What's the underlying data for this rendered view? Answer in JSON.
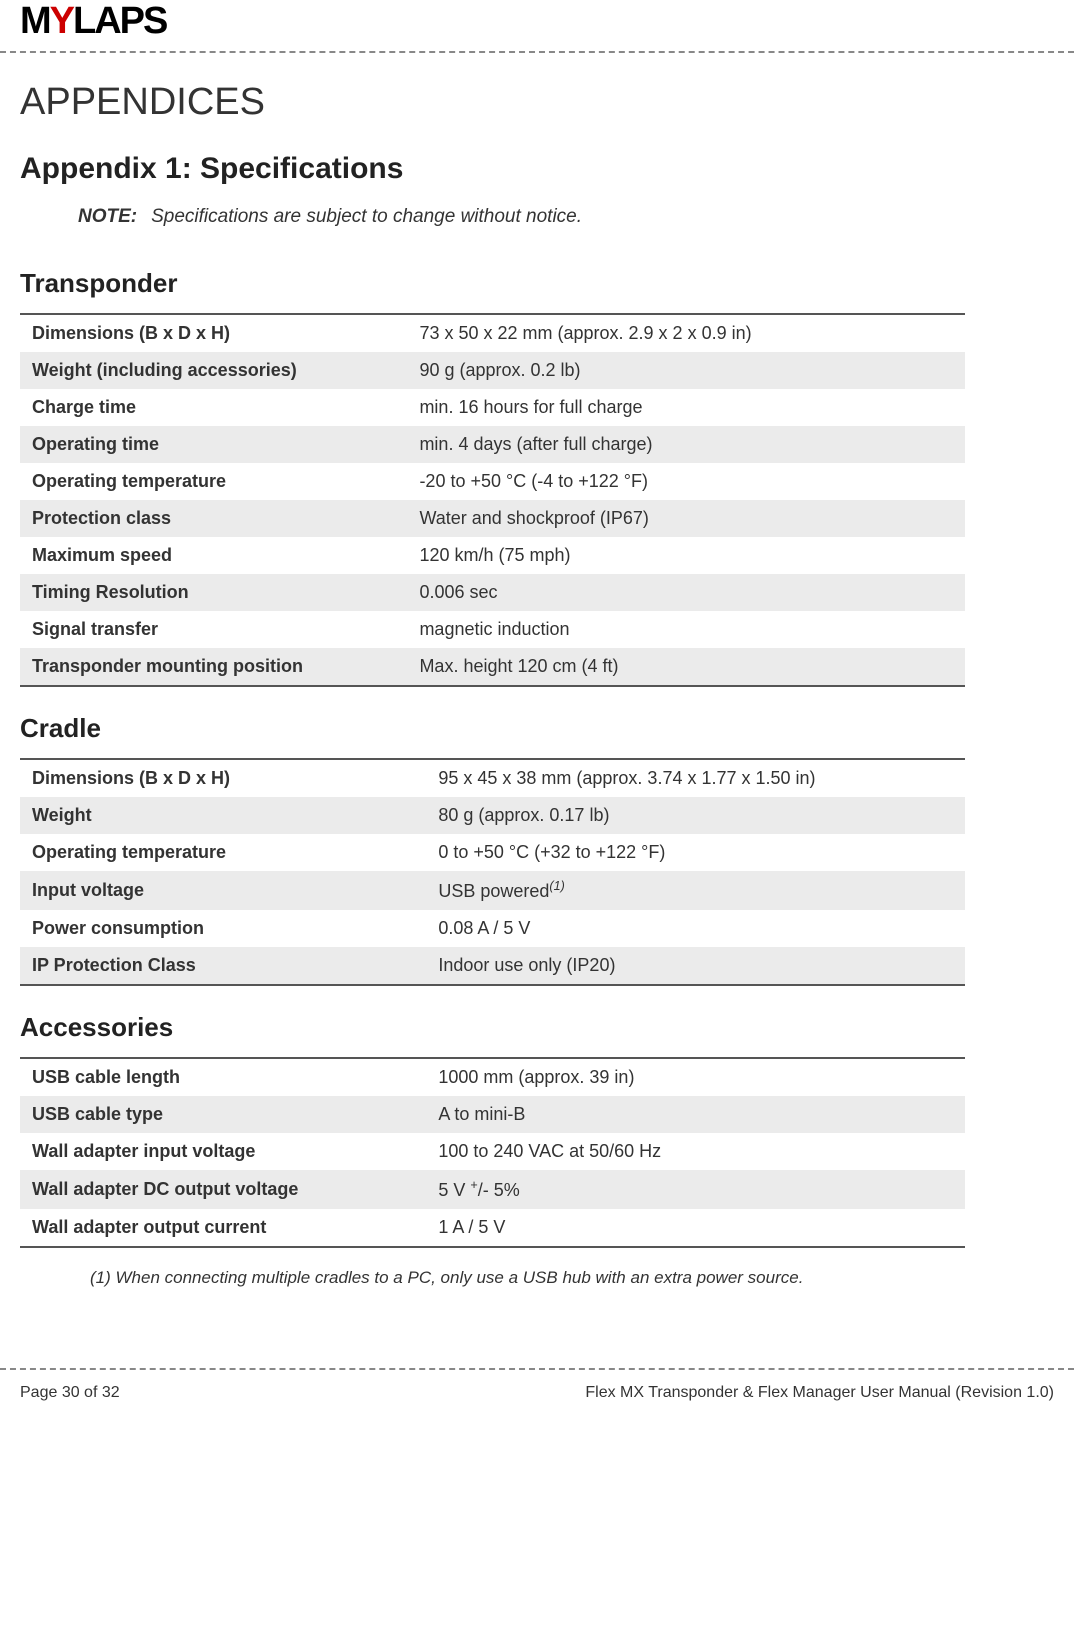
{
  "logo": {
    "text_left": "M",
    "text_y": "Y",
    "text_right": "LAPS"
  },
  "main_title": "APPENDICES",
  "appendix_title": "Appendix 1: Specifications",
  "note": {
    "label": "NOTE:",
    "text": "Specifications are subject to change without notice."
  },
  "sections": [
    {
      "title": "Transponder",
      "col1_width": "41%",
      "rows": [
        {
          "label": "Dimensions (B x D x H)",
          "value": "73 x 50 x 22 mm (approx. 2.9 x 2 x 0.9 in)"
        },
        {
          "label": "Weight (including accessories)",
          "value": "90 g (approx. 0.2 lb)"
        },
        {
          "label": "Charge time",
          "value": "min. 16 hours for full charge"
        },
        {
          "label": "Operating time",
          "value": "min. 4 days (after full charge)"
        },
        {
          "label": "Operating temperature",
          "value": "-20 to +50 °C (-4 to +122 °F)"
        },
        {
          "label": "Protection class",
          "value": "Water and shockproof (IP67)"
        },
        {
          "label": "Maximum speed",
          "value": "120 km/h (75 mph)"
        },
        {
          "label": "Timing Resolution",
          "value": "0.006 sec"
        },
        {
          "label": "Signal transfer",
          "value": "magnetic induction"
        },
        {
          "label": "Transponder mounting position",
          "value": "Max. height 120 cm (4 ft)"
        }
      ]
    },
    {
      "title": "Cradle",
      "col1_width": "43%",
      "rows": [
        {
          "label": "Dimensions (B x D x H)",
          "value": "95 x 45 x 38 mm (approx. 3.74 x 1.77 x 1.50 in)"
        },
        {
          "label": "Weight",
          "value": "80 g (approx. 0.17 lb)"
        },
        {
          "label": "Operating temperature",
          "value": "0 to +50 °C (+32 to +122 °F)"
        },
        {
          "label": "Input voltage",
          "value_html": "USB powered<sup><i>(1)</i></sup>"
        },
        {
          "label": "Power consumption",
          "value": "0.08 A / 5 V"
        },
        {
          "label": "IP Protection Class",
          "value": "Indoor use only (IP20)"
        }
      ]
    },
    {
      "title": "Accessories",
      "col1_width": "43%",
      "rows": [
        {
          "label": "USB cable length",
          "value": "1000 mm (approx. 39 in)"
        },
        {
          "label": "USB cable type",
          "value": "A to mini-B"
        },
        {
          "label": "Wall adapter input voltage",
          "value": "100 to 240 VAC at 50/60 Hz"
        },
        {
          "label": "Wall adapter DC output voltage",
          "value_html": "5 V <sup>+</sup>/- 5%"
        },
        {
          "label": "Wall adapter output current",
          "value": "1 A / 5 V"
        }
      ]
    }
  ],
  "footnote": "(1) When connecting multiple cradles to a PC, only use a USB hub with an extra power source.",
  "footer": {
    "left": "Page 30 of 32",
    "right": "Flex MX Transponder & Flex Manager User Manual  (Revision 1.0)"
  },
  "colors": {
    "stripe": "#ebebeb",
    "text": "#333333",
    "logo_red": "#cc0000",
    "dash": "#888888",
    "border": "#555555"
  }
}
